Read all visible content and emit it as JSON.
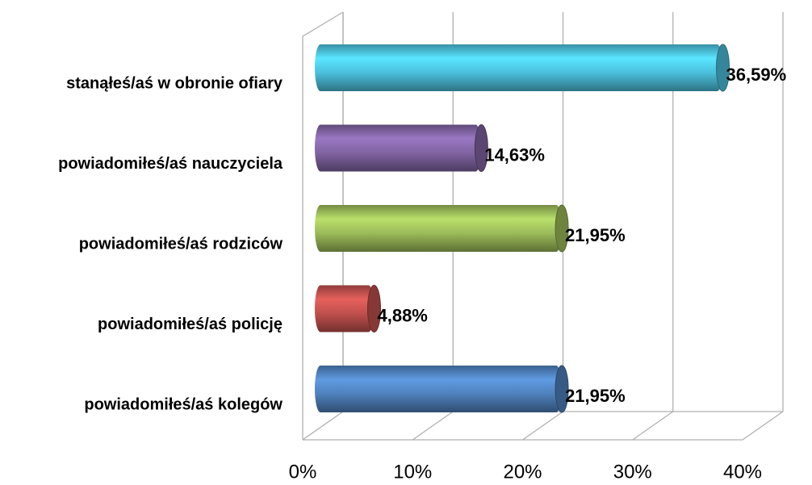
{
  "chart_data": {
    "type": "bar",
    "orientation": "horizontal",
    "categories": [
      "stanąłeś/aś w obronie ofiary",
      "powiadomiłeś/aś nauczyciela",
      "powiadomiłeś/aś rodziców",
      "powiadomiłeś/aś policję",
      "powiadomiłeś/aś kolegów"
    ],
    "values": [
      36.59,
      14.63,
      21.95,
      4.88,
      21.95
    ],
    "value_labels": [
      "36,59%",
      "14,63%",
      "21,95%",
      "4,88%",
      "21,95%"
    ],
    "colors": [
      "#4bc0dd",
      "#8064a2",
      "#9bbb59",
      "#c0504d",
      "#4f81bd"
    ],
    "xlim": [
      0,
      40
    ],
    "xticks": [
      {
        "value": 0,
        "label": "0%"
      },
      {
        "value": 10,
        "label": "10%"
      },
      {
        "value": 20,
        "label": "20%"
      },
      {
        "value": 30,
        "label": "30%"
      },
      {
        "value": 40,
        "label": "40%"
      }
    ],
    "grid": true
  }
}
